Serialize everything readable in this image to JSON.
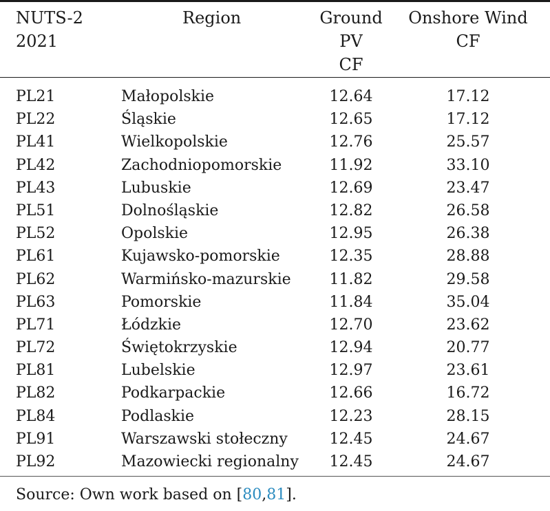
{
  "header": {
    "nuts": "NUTS-2\n2021",
    "region": "Region",
    "pv": "Ground\nPV\nCF",
    "wind": "Onshore Wind\nCF"
  },
  "rows": [
    {
      "code": "PL21",
      "region": "Małopolskie",
      "pv": "12.64",
      "wind": "17.12"
    },
    {
      "code": "PL22",
      "region": "Śląskie",
      "pv": "12.65",
      "wind": "17.12"
    },
    {
      "code": "PL41",
      "region": "Wielkopolskie",
      "pv": "12.76",
      "wind": "25.57"
    },
    {
      "code": "PL42",
      "region": "Zachodniopomorskie",
      "pv": "11.92",
      "wind": "33.10"
    },
    {
      "code": "PL43",
      "region": "Lubuskie",
      "pv": "12.69",
      "wind": "23.47"
    },
    {
      "code": "PL51",
      "region": "Dolnośląskie",
      "pv": "12.82",
      "wind": "26.58"
    },
    {
      "code": "PL52",
      "region": "Opolskie",
      "pv": "12.95",
      "wind": "26.38"
    },
    {
      "code": "PL61",
      "region": "Kujawsko-pomorskie",
      "pv": "12.35",
      "wind": "28.88"
    },
    {
      "code": "PL62",
      "region": "Warmińsko-mazurskie",
      "pv": "11.82",
      "wind": "29.58"
    },
    {
      "code": "PL63",
      "region": "Pomorskie",
      "pv": "11.84",
      "wind": "35.04"
    },
    {
      "code": "PL71",
      "region": "Łódzkie",
      "pv": "12.70",
      "wind": "23.62"
    },
    {
      "code": "PL72",
      "region": "Świętokrzyskie",
      "pv": "12.94",
      "wind": "20.77"
    },
    {
      "code": "PL81",
      "region": "Lubelskie",
      "pv": "12.97",
      "wind": "23.61"
    },
    {
      "code": "PL82",
      "region": "Podkarpackie",
      "pv": "12.66",
      "wind": "16.72"
    },
    {
      "code": "PL84",
      "region": "Podlaskie",
      "pv": "12.23",
      "wind": "28.15"
    },
    {
      "code": "PL91",
      "region": "Warszawski stołeczny",
      "pv": "12.45",
      "wind": "24.67"
    },
    {
      "code": "PL92",
      "region": "Mazowiecki regionalny",
      "pv": "12.45",
      "wind": "24.67"
    }
  ],
  "source": {
    "prefix": "Source: Own work based on [",
    "ref1": "80",
    "sep": ",",
    "ref2": "81",
    "suffix": "]."
  },
  "colors": {
    "link": "#2a8bbf"
  }
}
